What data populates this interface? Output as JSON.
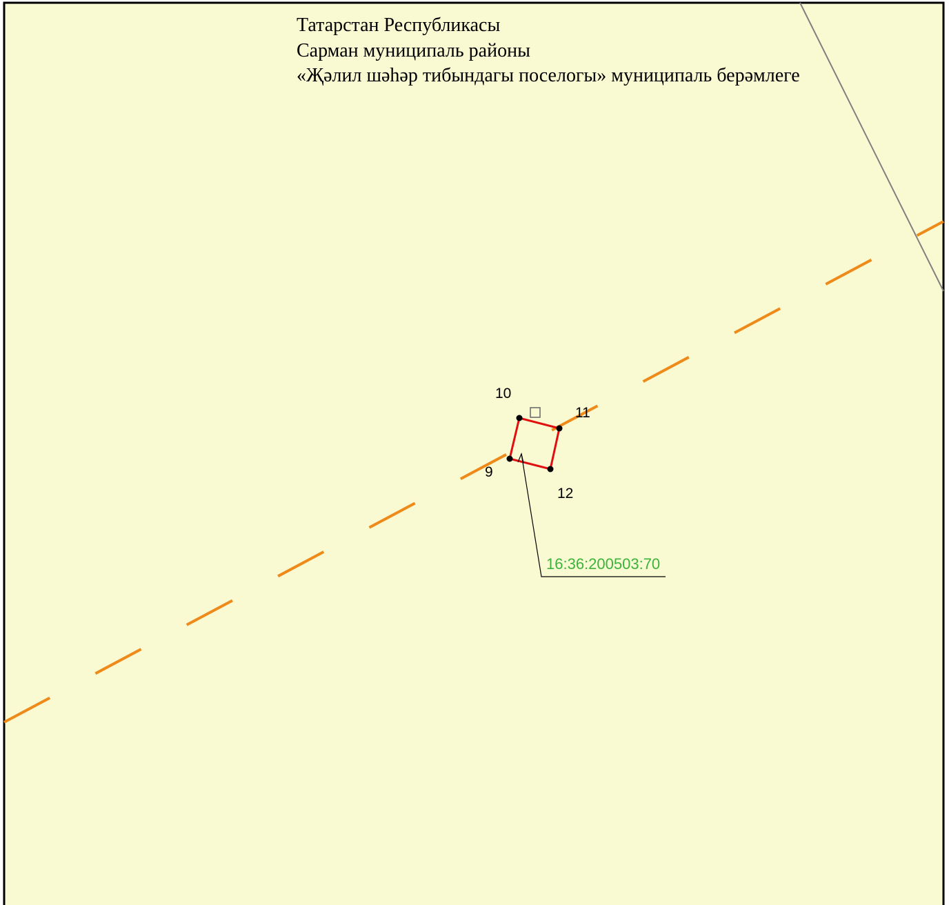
{
  "header": {
    "lines": [
      "Татарстан Республикасы",
      "Сарман муниципаль районы",
      "«Җәлил шәһәр тибындагы поселогы» муниципаль берәмлеге"
    ]
  },
  "points": [
    {
      "label": "10"
    },
    {
      "label": "11"
    },
    {
      "label": "12"
    },
    {
      "label": "9"
    }
  ],
  "parcel": {
    "label": "16:36:200503:70"
  }
}
